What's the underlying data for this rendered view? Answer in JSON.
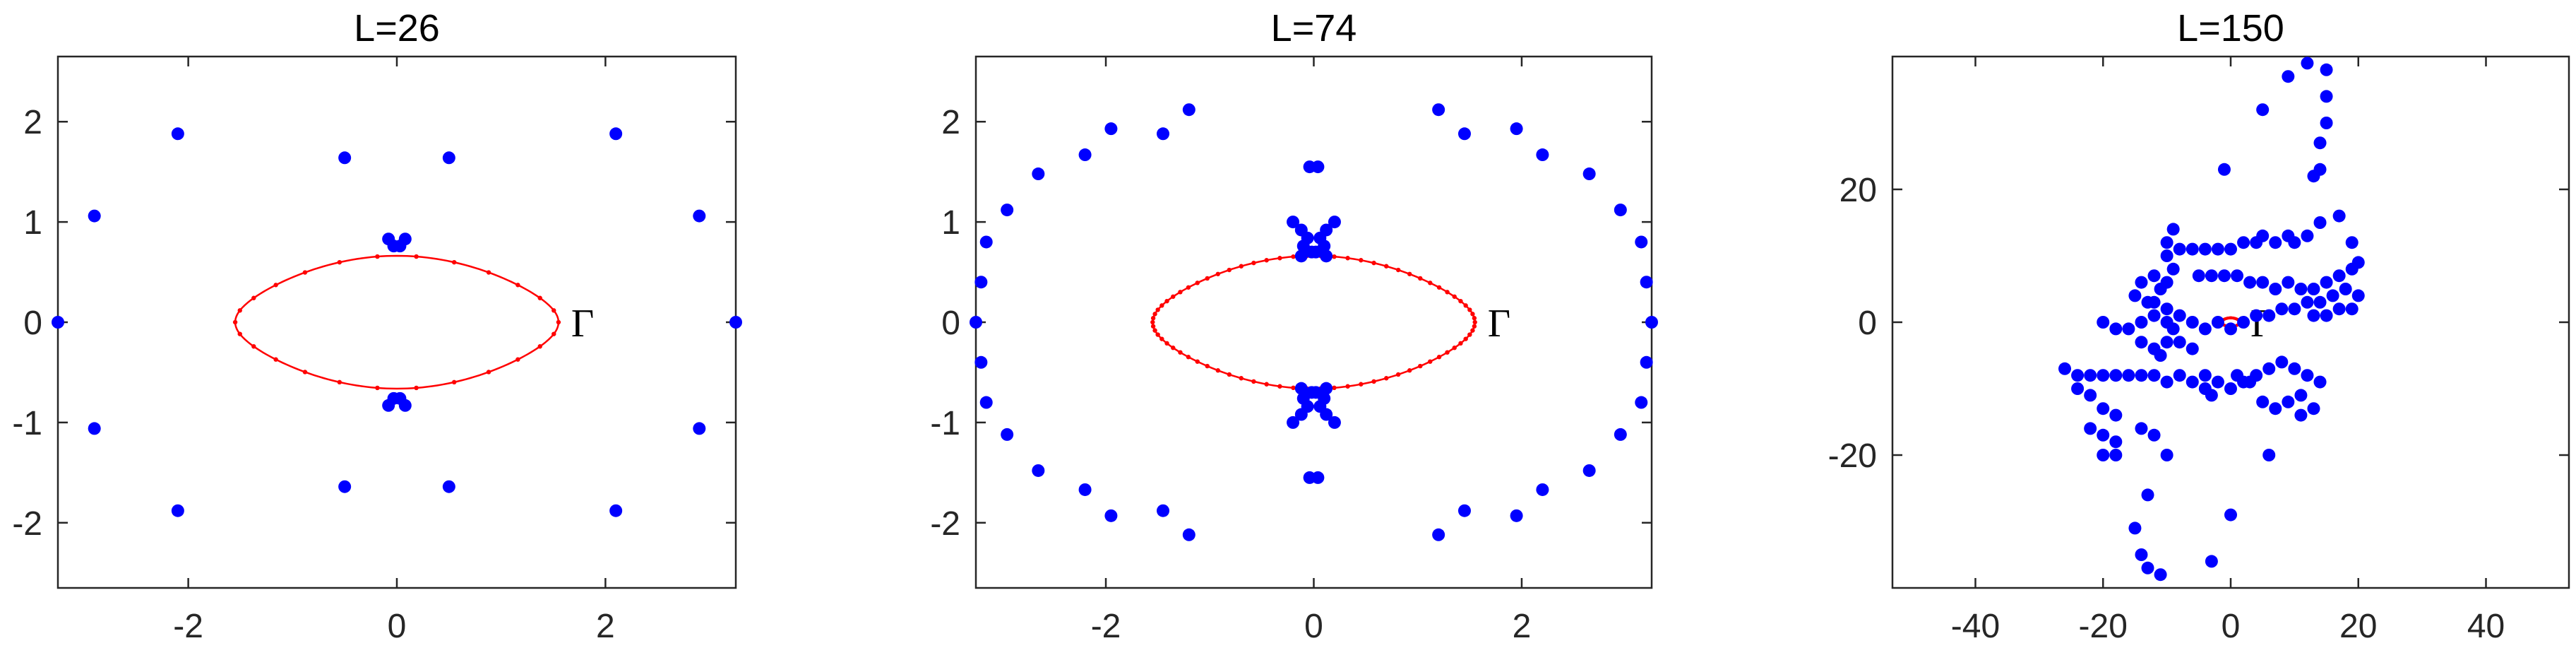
{
  "colors": {
    "points": "#0000ff",
    "curve": "#ff0000",
    "axes": "#262626",
    "background": "#ffffff"
  },
  "chart_data": [
    {
      "type": "scatter",
      "title": "L=26",
      "xlim": [
        -3.25,
        3.25
      ],
      "ylim": [
        -2.65,
        2.65
      ],
      "xticks": [
        -2,
        0,
        2
      ],
      "xtick_labels": [
        "-2",
        "0",
        "2"
      ],
      "yticks": [
        2,
        1,
        0,
        -1,
        -2
      ],
      "ytick_labels": [
        "2",
        "1",
        "0",
        "-1",
        "-2"
      ],
      "grid": false,
      "curve_label": "Γ",
      "curve": {
        "a": 1.55,
        "b": 0.48,
        "dip": 0.38,
        "markers": 26
      },
      "points": [
        [
          -3.25,
          0
        ],
        [
          3.25,
          0
        ],
        [
          -2.9,
          1.06
        ],
        [
          2.9,
          1.06
        ],
        [
          -2.9,
          -1.06
        ],
        [
          2.9,
          -1.06
        ],
        [
          -2.1,
          1.88
        ],
        [
          2.1,
          1.88
        ],
        [
          -2.1,
          -1.88
        ],
        [
          2.1,
          -1.88
        ],
        [
          -0.5,
          1.64
        ],
        [
          0.5,
          1.64
        ],
        [
          -0.5,
          -1.64
        ],
        [
          0.5,
          -1.64
        ],
        [
          -0.08,
          0.83
        ],
        [
          0.08,
          0.83
        ],
        [
          -0.03,
          0.76
        ],
        [
          0.03,
          0.76
        ],
        [
          -0.08,
          -0.83
        ],
        [
          0.08,
          -0.83
        ],
        [
          -0.03,
          -0.76
        ],
        [
          0.03,
          -0.76
        ]
      ]
    },
    {
      "type": "scatter",
      "title": "L=74",
      "xlim": [
        -3.25,
        3.25
      ],
      "ylim": [
        -2.65,
        2.65
      ],
      "xticks": [
        -2,
        0,
        2
      ],
      "xtick_labels": [
        "-2",
        "0",
        "2"
      ],
      "yticks": [
        2,
        1,
        0,
        -1,
        -2
      ],
      "ytick_labels": [
        "2",
        "1",
        "0",
        "-1",
        "-2"
      ],
      "grid": false,
      "curve_label": "Γ",
      "curve": {
        "a": 1.55,
        "b": 0.48,
        "dip": 0.38,
        "markers": 74
      },
      "points": [
        [
          -3.25,
          0
        ],
        [
          3.25,
          0
        ],
        [
          -3.2,
          0.4
        ],
        [
          3.2,
          0.4
        ],
        [
          -3.2,
          -0.4
        ],
        [
          3.2,
          -0.4
        ],
        [
          -3.15,
          0.8
        ],
        [
          3.15,
          0.8
        ],
        [
          -3.15,
          -0.8
        ],
        [
          3.15,
          -0.8
        ],
        [
          -2.95,
          1.12
        ],
        [
          2.95,
          1.12
        ],
        [
          -2.95,
          -1.12
        ],
        [
          2.95,
          -1.12
        ],
        [
          -2.65,
          1.48
        ],
        [
          2.65,
          1.48
        ],
        [
          -2.65,
          -1.48
        ],
        [
          2.65,
          -1.48
        ],
        [
          -2.2,
          1.67
        ],
        [
          2.2,
          1.67
        ],
        [
          -2.2,
          -1.67
        ],
        [
          2.2,
          -1.67
        ],
        [
          -1.95,
          1.93
        ],
        [
          1.95,
          1.93
        ],
        [
          -1.95,
          -1.93
        ],
        [
          1.95,
          -1.93
        ],
        [
          -1.45,
          1.88
        ],
        [
          1.45,
          1.88
        ],
        [
          -1.45,
          -1.88
        ],
        [
          1.45,
          -1.88
        ],
        [
          -1.2,
          2.12
        ],
        [
          1.2,
          2.12
        ],
        [
          -1.2,
          -2.12
        ],
        [
          1.2,
          -2.12
        ],
        [
          -0.04,
          1.55
        ],
        [
          0.04,
          1.55
        ],
        [
          -0.04,
          -1.55
        ],
        [
          0.04,
          -1.55
        ],
        [
          -0.2,
          1.0
        ],
        [
          0.2,
          1.0
        ],
        [
          -0.12,
          0.92
        ],
        [
          0.12,
          0.92
        ],
        [
          -0.06,
          0.84
        ],
        [
          0.06,
          0.84
        ],
        [
          -0.1,
          0.76
        ],
        [
          0.1,
          0.76
        ],
        [
          -0.02,
          0.7
        ],
        [
          0.02,
          0.7
        ],
        [
          -0.12,
          0.66
        ],
        [
          0.12,
          0.66
        ],
        [
          -0.2,
          -1.0
        ],
        [
          0.2,
          -1.0
        ],
        [
          -0.12,
          -0.92
        ],
        [
          0.12,
          -0.92
        ],
        [
          -0.06,
          -0.84
        ],
        [
          0.06,
          -0.84
        ],
        [
          -0.1,
          -0.76
        ],
        [
          0.1,
          -0.76
        ],
        [
          -0.02,
          -0.7
        ],
        [
          0.02,
          -0.7
        ],
        [
          -0.12,
          -0.66
        ],
        [
          0.12,
          -0.66
        ]
      ]
    },
    {
      "type": "scatter",
      "title": "L=150",
      "xlim": [
        -53,
        53
      ],
      "ylim": [
        -40,
        40
      ],
      "xticks": [
        -40,
        -20,
        0,
        20,
        40
      ],
      "xtick_labels": [
        "-40",
        "-20",
        "0",
        "20",
        "40"
      ],
      "yticks": [
        20,
        0,
        -20
      ],
      "ytick_labels": [
        "20",
        "0",
        "-20"
      ],
      "grid": false,
      "curve_label": "Γ",
      "curve": {
        "a": 1.55,
        "b": 0.48,
        "dip": 0.38,
        "markers": 150
      },
      "points": [
        [
          12,
          39
        ],
        [
          15,
          38
        ],
        [
          9,
          37
        ],
        [
          5,
          32
        ],
        [
          15,
          34
        ],
        [
          15,
          30
        ],
        [
          14,
          27
        ],
        [
          14,
          23
        ],
        [
          13,
          22
        ],
        [
          -1,
          23
        ],
        [
          -9,
          14
        ],
        [
          -10,
          12
        ],
        [
          -8,
          11
        ],
        [
          -6,
          11
        ],
        [
          -4,
          11
        ],
        [
          -2,
          11
        ],
        [
          0,
          11
        ],
        [
          2,
          12
        ],
        [
          4,
          12
        ],
        [
          5,
          13
        ],
        [
          7,
          12
        ],
        [
          9,
          13
        ],
        [
          10,
          12
        ],
        [
          12,
          13
        ],
        [
          14,
          15
        ],
        [
          17,
          16
        ],
        [
          19,
          12
        ],
        [
          -10,
          10
        ],
        [
          -9,
          8
        ],
        [
          -12,
          7
        ],
        [
          -12,
          3
        ],
        [
          -10,
          2
        ],
        [
          -8,
          1
        ],
        [
          -14,
          6
        ],
        [
          -13,
          3
        ],
        [
          -11,
          5
        ],
        [
          -10,
          6
        ],
        [
          -5,
          7
        ],
        [
          -3,
          7
        ],
        [
          -1,
          7
        ],
        [
          1,
          7
        ],
        [
          3,
          6
        ],
        [
          5,
          6
        ],
        [
          7,
          5
        ],
        [
          9,
          6
        ],
        [
          11,
          5
        ],
        [
          13,
          5
        ],
        [
          15,
          6
        ],
        [
          17,
          7
        ],
        [
          19,
          8
        ],
        [
          20,
          9
        ],
        [
          -15,
          4
        ],
        [
          -12,
          1
        ],
        [
          -10,
          0
        ],
        [
          -9,
          -1
        ],
        [
          -6,
          0
        ],
        [
          -4,
          -1
        ],
        [
          -2,
          0
        ],
        [
          0,
          -1
        ],
        [
          2,
          0
        ],
        [
          4,
          1
        ],
        [
          6,
          1
        ],
        [
          8,
          2
        ],
        [
          10,
          2
        ],
        [
          12,
          3
        ],
        [
          14,
          3
        ],
        [
          16,
          4
        ],
        [
          18,
          5
        ],
        [
          20,
          4
        ],
        [
          19,
          2
        ],
        [
          17,
          2
        ],
        [
          15,
          1
        ],
        [
          13,
          1
        ],
        [
          -20,
          0
        ],
        [
          -18,
          -1
        ],
        [
          -16,
          -1
        ],
        [
          -14,
          0
        ],
        [
          -10,
          -3
        ],
        [
          -8,
          -3
        ],
        [
          -6,
          -4
        ],
        [
          -14,
          -3
        ],
        [
          -12,
          -4
        ],
        [
          -11,
          -5
        ],
        [
          -26,
          -7
        ],
        [
          -24,
          -8
        ],
        [
          -22,
          -8
        ],
        [
          -20,
          -8
        ],
        [
          -18,
          -8
        ],
        [
          -16,
          -8
        ],
        [
          -14,
          -8
        ],
        [
          -12,
          -8
        ],
        [
          -10,
          -9
        ],
        [
          -8,
          -8
        ],
        [
          -6,
          -9
        ],
        [
          -4,
          -8
        ],
        [
          -2,
          -9
        ],
        [
          0,
          -10
        ],
        [
          2,
          -9
        ],
        [
          4,
          -8
        ],
        [
          6,
          -7
        ],
        [
          8,
          -6
        ],
        [
          10,
          -7
        ],
        [
          12,
          -8
        ],
        [
          14,
          -9
        ],
        [
          -24,
          -10
        ],
        [
          -22,
          -11
        ],
        [
          -20,
          -13
        ],
        [
          -18,
          -14
        ],
        [
          -20,
          -17
        ],
        [
          -18,
          -18
        ],
        [
          -20,
          -20
        ],
        [
          -18,
          -20
        ],
        [
          -22,
          -16
        ],
        [
          -14,
          -16
        ],
        [
          -12,
          -17
        ],
        [
          -10,
          -20
        ],
        [
          -4,
          -10
        ],
        [
          -3,
          -11
        ],
        [
          1,
          -8
        ],
        [
          3,
          -9
        ],
        [
          5,
          -12
        ],
        [
          7,
          -13
        ],
        [
          9,
          -12
        ],
        [
          11,
          -11
        ],
        [
          13,
          -13
        ],
        [
          11,
          -14
        ],
        [
          6,
          -20
        ],
        [
          -15,
          -31
        ],
        [
          -13,
          -26
        ],
        [
          -14,
          -35
        ],
        [
          -13,
          -37
        ],
        [
          -11,
          -38
        ],
        [
          -3,
          -36
        ],
        [
          0,
          -29
        ]
      ]
    }
  ]
}
